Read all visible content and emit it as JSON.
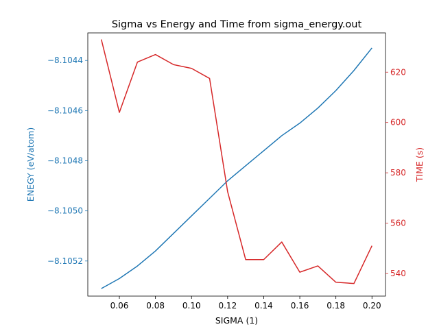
{
  "chart_data": {
    "type": "line",
    "title": "Sigma vs Energy and Time from sigma_energy.out",
    "xlabel": "SIGMA (1)",
    "ylabel_left": "ENEGY (eV/atom)",
    "ylabel_right": "TIME (s)",
    "x": [
      0.05,
      0.06,
      0.07,
      0.08,
      0.09,
      0.1,
      0.11,
      0.12,
      0.13,
      0.14,
      0.15,
      0.16,
      0.17,
      0.18,
      0.19,
      0.2
    ],
    "xlim": [
      0.0425,
      0.2075
    ],
    "ylim_left": [
      -8.10534,
      -8.10429
    ],
    "ylim_right": [
      531.0,
      635.6
    ],
    "xticks": [
      0.06,
      0.08,
      0.1,
      0.12,
      0.14,
      0.16,
      0.18,
      0.2
    ],
    "xtick_labels": [
      "0.06",
      "0.08",
      "0.10",
      "0.12",
      "0.14",
      "0.16",
      "0.18",
      "0.20"
    ],
    "yticks_left": [
      -8.1044,
      -8.1046,
      -8.1048,
      -8.105,
      -8.1052
    ],
    "ytick_labels_left": [
      "−8.1044",
      "−8.1046",
      "−8.1048",
      "−8.1050",
      "−8.1052"
    ],
    "yticks_right": [
      540,
      560,
      580,
      600,
      620
    ],
    "ytick_labels_right": [
      "540",
      "560",
      "580",
      "600",
      "620"
    ],
    "grid": false,
    "series": [
      {
        "axis": "left",
        "color": "#1f77b4",
        "values": [
          -8.10531,
          -8.10527,
          -8.10522,
          -8.10516,
          -8.10509,
          -8.10502,
          -8.10495,
          -8.10488,
          -8.10482,
          -8.10476,
          -8.1047,
          -8.10465,
          -8.10459,
          -8.10452,
          -8.10444,
          -8.10435
        ]
      },
      {
        "axis": "right",
        "color": "#d62728",
        "values": [
          633,
          604,
          624,
          627,
          623,
          621.5,
          617.5,
          572.5,
          545.5,
          545.5,
          552.5,
          540.5,
          543,
          536.5,
          536,
          551
        ]
      }
    ]
  }
}
